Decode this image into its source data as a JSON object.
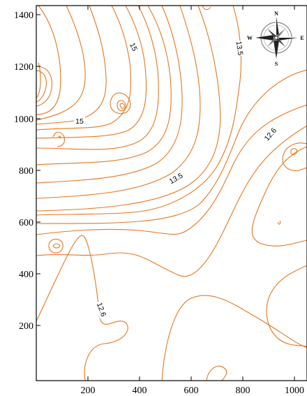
{
  "map": {
    "x_ticks": [
      "200",
      "400",
      "600",
      "800",
      "1000"
    ],
    "y_ticks": [
      "200",
      "400",
      "600",
      "800",
      "1000",
      "1200",
      "1400"
    ],
    "contour_labels": [
      "15",
      "15",
      "13.5",
      "13.5",
      "12.6",
      "12.6"
    ],
    "compass": {
      "north": "N",
      "south": "S",
      "east": "E",
      "west": "W"
    },
    "contour_color": "#e8761e",
    "axis_color": "#000000"
  }
}
